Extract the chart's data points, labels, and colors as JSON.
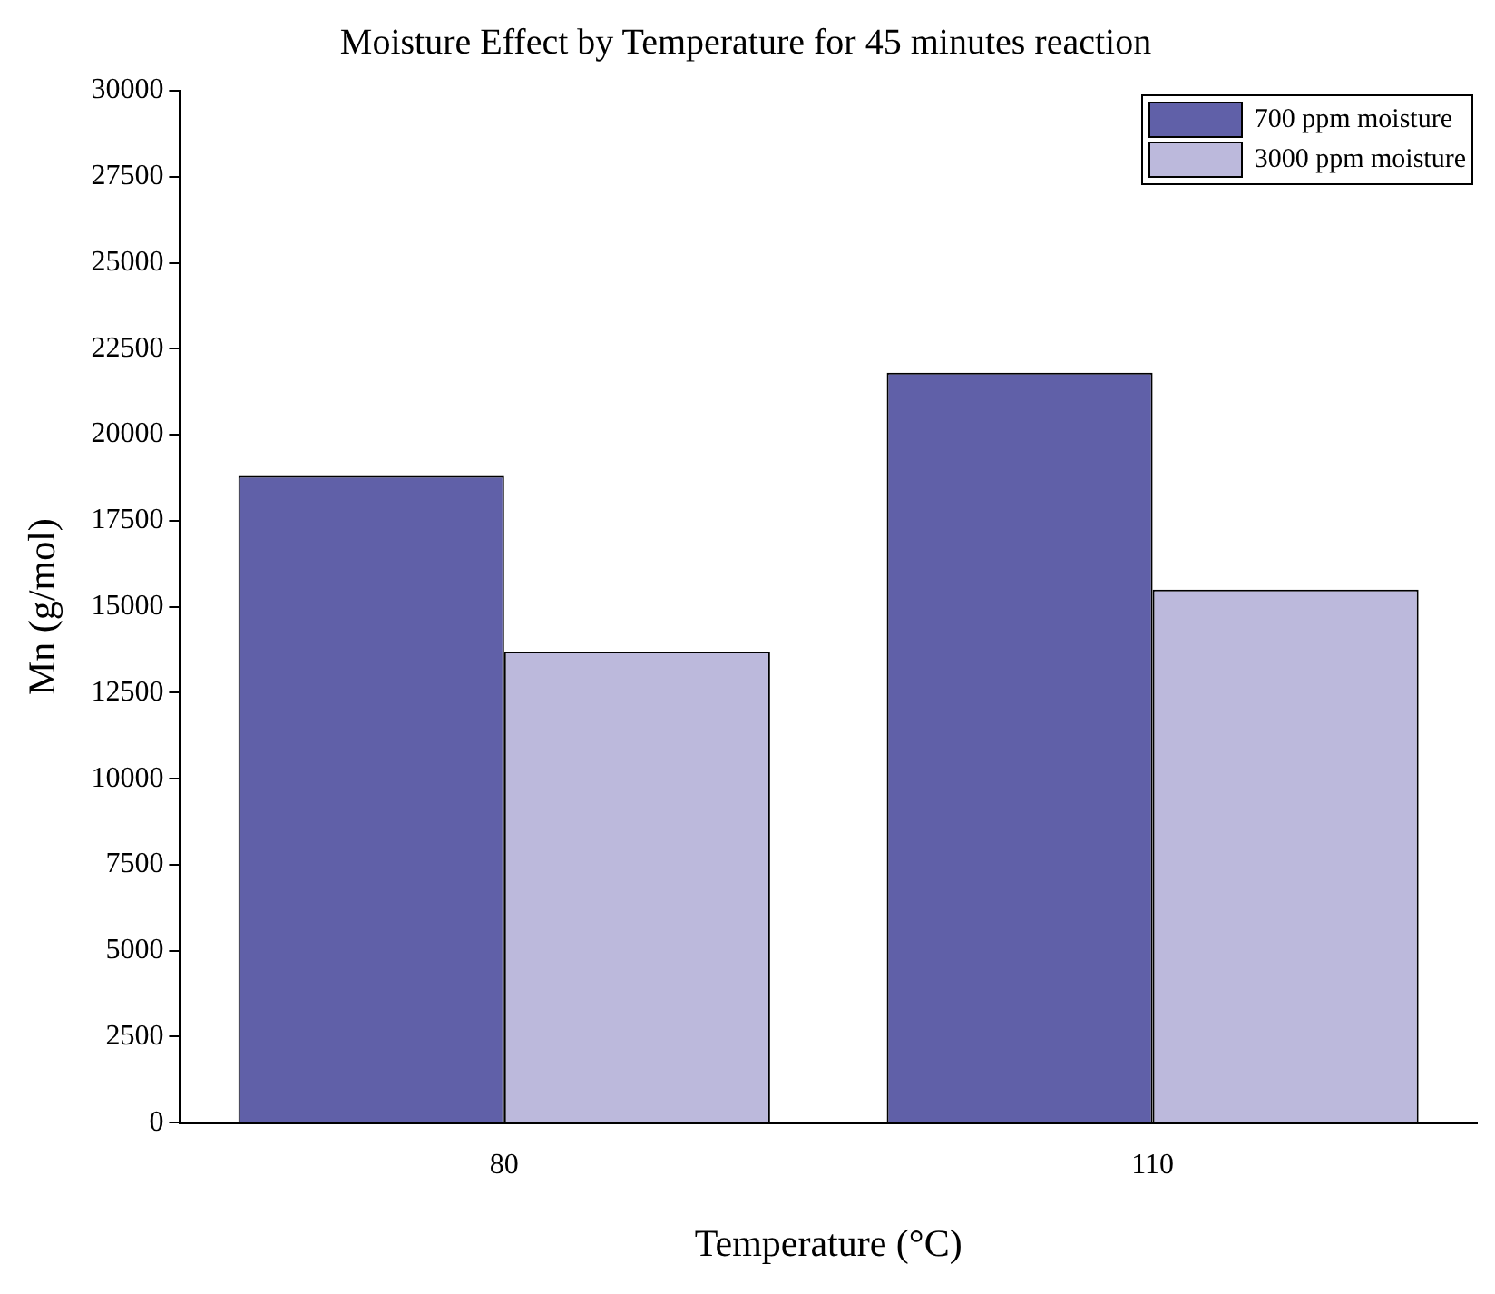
{
  "chart_data": {
    "type": "bar",
    "title": "Moisture Effect by Temperature for 45 minutes reaction",
    "xlabel": "Temperature (°C)",
    "ylabel": "Mn (g/mol)",
    "categories": [
      "80",
      "110"
    ],
    "series": [
      {
        "name": "700 ppm moisture",
        "color": "#6060a8",
        "values": [
          18800,
          21800
        ]
      },
      {
        "name": "3000 ppm moisture",
        "color": "#bcb9dc",
        "values": [
          13700,
          15500
        ]
      }
    ],
    "ylim": [
      0,
      30000
    ],
    "yticks": [
      0,
      2500,
      5000,
      7500,
      10000,
      12500,
      15000,
      17500,
      20000,
      22500,
      25000,
      27500,
      30000
    ],
    "grid": false,
    "legend": "top right"
  }
}
